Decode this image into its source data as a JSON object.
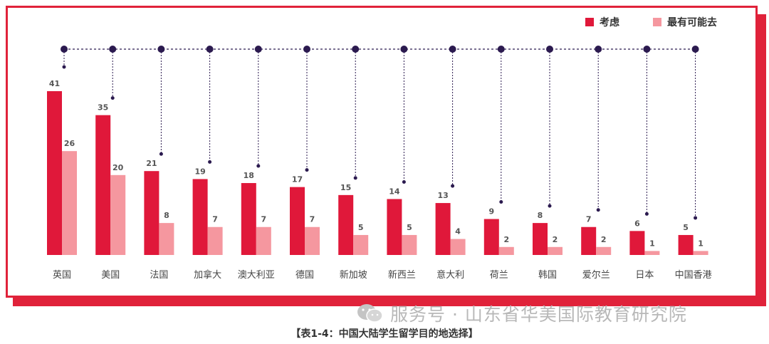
{
  "chart_data": {
    "type": "bar",
    "categories": [
      "英国",
      "美国",
      "法国",
      "加拿大",
      "澳大利亚",
      "德国",
      "新加坡",
      "新西兰",
      "意大利",
      "荷兰",
      "韩国",
      "爱尔兰",
      "日本",
      "中国香港"
    ],
    "series": [
      {
        "name": "考虑",
        "values": [
          41,
          35,
          21,
          19,
          18,
          17,
          15,
          14,
          13,
          9,
          8,
          7,
          6,
          5
        ],
        "color": "#e0183a"
      },
      {
        "name": "最有可能去",
        "values": [
          26,
          20,
          8,
          7,
          7,
          7,
          5,
          5,
          4,
          2,
          2,
          2,
          1,
          1
        ],
        "color": "#f5979f"
      }
    ],
    "ylim": [
      0,
      41
    ],
    "legend_position": "top-right",
    "grid": false,
    "data_labels": true,
    "dot_color": "#2b1a4f"
  },
  "caption": "【表1-4：中国大陆学生留学目的地选择】",
  "watermark": "服务号 · 山东省华美国际教育研究院",
  "watermark_icon": "wechat-icon"
}
